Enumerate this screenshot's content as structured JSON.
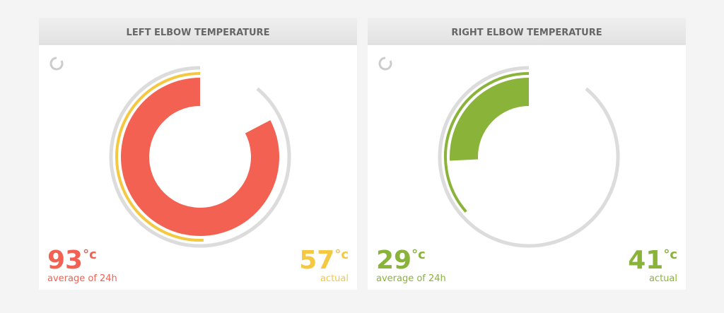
{
  "panels": [
    {
      "title": "LEFT ELBOW TEMPERATURE",
      "average": {
        "value": 93,
        "unit": "°c",
        "label": "average of 24h",
        "color": "#f26152"
      },
      "actual": {
        "value": 57,
        "unit": "°c",
        "label": "actual",
        "color": "#f5c842"
      }
    },
    {
      "title": "RIGHT ELBOW TEMPERATURE",
      "average": {
        "value": 29,
        "unit": "°c",
        "label": "average of 24h",
        "color": "#8ab33a"
      },
      "actual": {
        "value": 41,
        "unit": "°c",
        "label": "actual",
        "color": "#8ab33a"
      }
    }
  ]
}
